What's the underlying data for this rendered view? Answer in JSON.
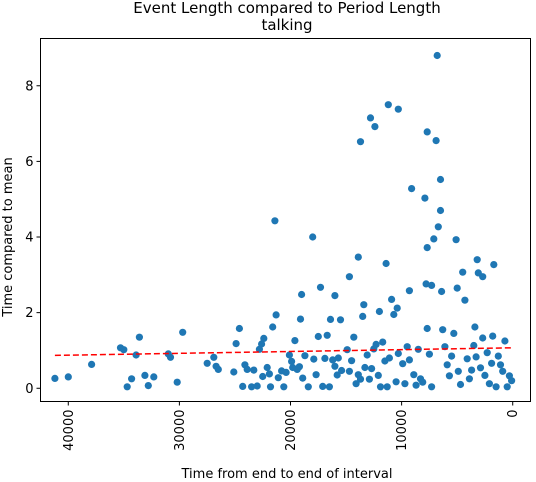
{
  "chart_data": {
    "type": "scatter",
    "title": "Event Length compared to Period Length",
    "subtitle": "talking",
    "xlabel": "Time from end to end of interval",
    "ylabel": "Time compared to mean",
    "x_inverted": true,
    "xlim": [
      42500,
      -1600
    ],
    "ylim": [
      -0.35,
      9.25
    ],
    "x_ticks": [
      40000,
      30000,
      20000,
      10000,
      0
    ],
    "x_tick_labels": [
      "40000",
      "30000",
      "20000",
      "10000",
      "0"
    ],
    "y_ticks": [
      0,
      2,
      4,
      6,
      8
    ],
    "y_tick_labels": [
      "0",
      "2",
      "4",
      "6",
      "8"
    ],
    "grid": false,
    "point_color": "#1f77b4",
    "trend_color": "#ff0000",
    "trend_line": {
      "style": "dashed",
      "x": [
        41200,
        0
      ],
      "y": [
        0.87,
        1.07
      ]
    },
    "points": [
      [
        41200,
        0.26
      ],
      [
        40000,
        0.3
      ],
      [
        37900,
        0.63
      ],
      [
        35300,
        1.07
      ],
      [
        35000,
        1.02
      ],
      [
        34700,
        0.04
      ],
      [
        34300,
        0.25
      ],
      [
        33900,
        0.88
      ],
      [
        33600,
        1.35
      ],
      [
        33100,
        0.34
      ],
      [
        32800,
        0.07
      ],
      [
        32300,
        0.3
      ],
      [
        31000,
        0.91
      ],
      [
        30800,
        0.82
      ],
      [
        30200,
        0.16
      ],
      [
        29700,
        1.48
      ],
      [
        27500,
        0.66
      ],
      [
        26900,
        0.82
      ],
      [
        26700,
        0.58
      ],
      [
        26500,
        0.5
      ],
      [
        25100,
        0.43
      ],
      [
        24900,
        1.18
      ],
      [
        24600,
        1.58
      ],
      [
        24300,
        0.05
      ],
      [
        24100,
        0.62
      ],
      [
        23900,
        0.5
      ],
      [
        23500,
        0.04
      ],
      [
        23300,
        0.48
      ],
      [
        23000,
        0.06
      ],
      [
        22800,
        1.03
      ],
      [
        22600,
        1.17
      ],
      [
        22500,
        0.31
      ],
      [
        22400,
        1.32
      ],
      [
        22100,
        0.55
      ],
      [
        21900,
        0.38
      ],
      [
        21800,
        0.04
      ],
      [
        21600,
        1.62
      ],
      [
        21400,
        4.43
      ],
      [
        21300,
        1.94
      ],
      [
        21100,
        0.28
      ],
      [
        20800,
        0.46
      ],
      [
        20600,
        0.04
      ],
      [
        20400,
        0.42
      ],
      [
        20100,
        0.88
      ],
      [
        19900,
        0.71
      ],
      [
        19800,
        0.55
      ],
      [
        19600,
        1.26
      ],
      [
        19400,
        0.5
      ],
      [
        19200,
        0.57
      ],
      [
        19100,
        1.83
      ],
      [
        18900,
        0.27
      ],
      [
        18700,
        0.86
      ],
      [
        18400,
        0.04
      ],
      [
        17900,
        0.77
      ],
      [
        17700,
        0.36
      ],
      [
        17500,
        1.37
      ],
      [
        17300,
        2.67
      ],
      [
        17100,
        0.05
      ],
      [
        16900,
        0.79
      ],
      [
        16700,
        1.4
      ],
      [
        16500,
        0.04
      ],
      [
        16200,
        0.75
      ],
      [
        16000,
        0.58
      ],
      [
        15800,
        0.35
      ],
      [
        15700,
        0.8
      ],
      [
        15500,
        1.81
      ],
      [
        15400,
        0.47
      ],
      [
        14900,
        1.02
      ],
      [
        14700,
        0.45
      ],
      [
        14500,
        0.73
      ],
      [
        14300,
        1.35
      ],
      [
        14100,
        0.12
      ],
      [
        13900,
        0.36
      ],
      [
        13700,
        0.24
      ],
      [
        13500,
        1.9
      ],
      [
        13300,
        0.55
      ],
      [
        13100,
        0.88
      ],
      [
        12900,
        0.24
      ],
      [
        12700,
        0.52
      ],
      [
        12500,
        1.04
      ],
      [
        12300,
        1.16
      ],
      [
        12100,
        0.34
      ],
      [
        11900,
        0.04
      ],
      [
        11700,
        1.22
      ],
      [
        11500,
        0.72
      ],
      [
        11300,
        0.04
      ],
      [
        11100,
        0.8
      ],
      [
        10900,
        2.35
      ],
      [
        10700,
        1.95
      ],
      [
        10500,
        0.17
      ],
      [
        10300,
        0.92
      ],
      [
        9900,
        0.65
      ],
      [
        9700,
        0.12
      ],
      [
        9500,
        1.1
      ],
      [
        9300,
        0.75
      ],
      [
        9100,
        5.28
      ],
      [
        8900,
        0.36
      ],
      [
        8700,
        0.08
      ],
      [
        8500,
        1.03
      ],
      [
        8300,
        0.25
      ],
      [
        8100,
        0.16
      ],
      [
        7900,
        5.03
      ],
      [
        7700,
        3.72
      ],
      [
        7500,
        0.9
      ],
      [
        7300,
        0.04
      ],
      [
        7100,
        3.95
      ],
      [
        6900,
        6.55
      ],
      [
        6800,
        8.8
      ],
      [
        6700,
        4.27
      ],
      [
        6500,
        5.52
      ],
      [
        6400,
        2.56
      ],
      [
        6300,
        1.55
      ],
      [
        6100,
        1.1
      ],
      [
        5900,
        0.62
      ],
      [
        5700,
        0.33
      ],
      [
        5500,
        0.85
      ],
      [
        5300,
        1.45
      ],
      [
        5100,
        3.93
      ],
      [
        4900,
        0.45
      ],
      [
        4700,
        0.1
      ],
      [
        4500,
        3.07
      ],
      [
        4300,
        2.33
      ],
      [
        4100,
        0.78
      ],
      [
        3900,
        0.25
      ],
      [
        3700,
        0.48
      ],
      [
        3500,
        1.13
      ],
      [
        3300,
        0.83
      ],
      [
        3100,
        3.05
      ],
      [
        2900,
        0.54
      ],
      [
        2700,
        1.33
      ],
      [
        2500,
        0.34
      ],
      [
        2300,
        0.94
      ],
      [
        2100,
        0.12
      ],
      [
        1900,
        0.66
      ],
      [
        1700,
        3.27
      ],
      [
        1500,
        0.04
      ],
      [
        1300,
        0.85
      ],
      [
        1100,
        0.62
      ],
      [
        900,
        0.45
      ],
      [
        700,
        1.25
      ],
      [
        500,
        0.04
      ],
      [
        300,
        0.33
      ],
      [
        100,
        0.2
      ],
      [
        19000,
        2.48
      ],
      [
        16000,
        2.45
      ],
      [
        14700,
        2.95
      ],
      [
        13900,
        3.47
      ],
      [
        11400,
        3.3
      ],
      [
        12800,
        7.15
      ],
      [
        12400,
        6.92
      ],
      [
        11200,
        7.5
      ],
      [
        10300,
        7.38
      ],
      [
        7700,
        6.78
      ],
      [
        13700,
        6.52
      ],
      [
        9300,
        2.58
      ],
      [
        7300,
        2.72
      ],
      [
        6500,
        4.7
      ],
      [
        5000,
        2.65
      ],
      [
        3200,
        3.4
      ],
      [
        2700,
        2.95
      ],
      [
        10400,
        2.12
      ],
      [
        7700,
        1.58
      ],
      [
        18000,
        4.0
      ],
      [
        16400,
        1.82
      ],
      [
        13400,
        2.21
      ],
      [
        12000,
        2.03
      ],
      [
        7800,
        2.76
      ],
      [
        3400,
        1.62
      ],
      [
        1800,
        1.38
      ]
    ]
  }
}
